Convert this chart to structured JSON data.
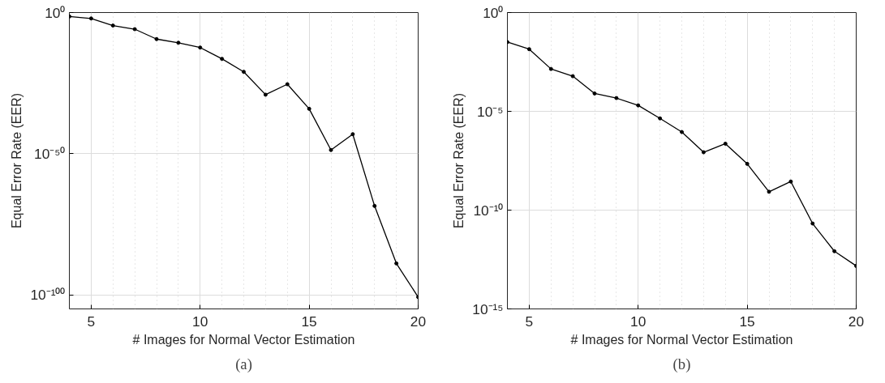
{
  "chart_data": [
    {
      "type": "line",
      "xlabel": "# Images for Normal Vector Estimation",
      "ylabel": "Equal Error Rate (EER)",
      "annotations": [
        "(a)"
      ],
      "x": [
        4,
        5,
        6,
        7,
        8,
        9,
        10,
        11,
        12,
        13,
        14,
        15,
        16,
        17,
        18,
        19,
        20
      ],
      "series": [
        {
          "color": "#000000",
          "values": [
            0.04,
            0.008,
            2.5e-05,
            1.3e-06,
            4e-10,
            2e-11,
            4e-13,
            4e-17,
            1e-21,
            8e-30,
            4e-26,
            8e-35,
            2e-49,
            8e-44,
            3e-69,
            1.3e-89,
            1.6e-101
          ]
        }
      ],
      "log": "y",
      "ylim": [
        1e-105,
        1
      ],
      "yticks": [
        {
          "value": 1e-100,
          "label": "10⁻¹⁰⁰"
        },
        {
          "value": 1e-50,
          "label": "10⁻⁵⁰"
        },
        {
          "value": 1,
          "label": "10⁰"
        }
      ],
      "xlim": [
        4,
        20
      ],
      "xticks": [
        5,
        {
          "value": 6,
          "label": null
        },
        {
          "value": 7,
          "label": null
        },
        {
          "value": 8,
          "label": null
        },
        {
          "value": 9,
          "label": null
        },
        10,
        {
          "value": 11,
          "label": null
        },
        {
          "value": 12,
          "label": null
        },
        {
          "value": 13,
          "label": null
        },
        {
          "value": 14,
          "label": null
        },
        15,
        {
          "value": 16,
          "label": null
        },
        {
          "value": 17,
          "label": null
        },
        {
          "value": 18,
          "label": null
        },
        {
          "value": 19,
          "label": null
        },
        20
      ],
      "grid": true,
      "marker": "circle",
      "line_style": "solid"
    },
    {
      "type": "line",
      "xlabel": "# Images for Normal Vector Estimation",
      "ylabel": "Equal Error Rate (EER)",
      "annotations": [
        "(b)"
      ],
      "x": [
        4,
        5,
        6,
        7,
        8,
        9,
        10,
        11,
        12,
        13,
        14,
        15,
        16,
        17,
        18,
        19,
        20
      ],
      "series": [
        {
          "color": "#000000",
          "values": [
            0.032,
            0.014,
            0.0014,
            0.0006,
            8e-05,
            4.7e-05,
            2e-05,
            4.4e-06,
            9e-07,
            8.5e-08,
            2.3e-07,
            2.2e-08,
            8.5e-10,
            2.8e-09,
            2.1e-11,
            8.3e-13,
            1.5e-13
          ]
        }
      ],
      "log": "y",
      "ylim": [
        1e-15,
        1
      ],
      "yticks": [
        {
          "value": 1e-15,
          "label": "10⁻¹⁵"
        },
        {
          "value": 1e-10,
          "label": "10⁻¹⁰"
        },
        {
          "value": 1e-05,
          "label": "10⁻⁵"
        },
        {
          "value": 1,
          "label": "10⁰"
        }
      ],
      "xlim": [
        4,
        20
      ],
      "xticks": [
        5,
        {
          "value": 6,
          "label": null
        },
        {
          "value": 7,
          "label": null
        },
        {
          "value": 8,
          "label": null
        },
        {
          "value": 9,
          "label": null
        },
        10,
        {
          "value": 11,
          "label": null
        },
        {
          "value": 12,
          "label": null
        },
        {
          "value": 13,
          "label": null
        },
        {
          "value": 14,
          "label": null
        },
        15,
        {
          "value": 16,
          "label": null
        },
        {
          "value": 17,
          "label": null
        },
        {
          "value": 18,
          "label": null
        },
        {
          "value": 19,
          "label": null
        },
        20
      ],
      "grid": true,
      "marker": "circle",
      "line_style": "solid"
    }
  ]
}
